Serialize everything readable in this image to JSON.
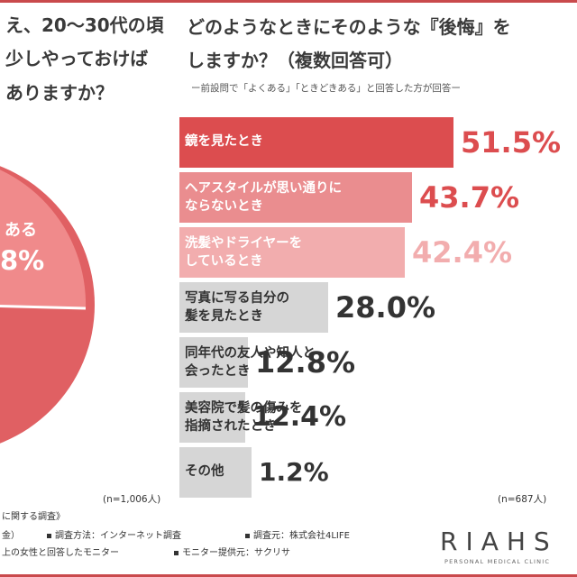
{
  "left_panel": {
    "question_lines": [
      "え、20〜30代の頃",
      "少しやっておけば",
      "ありますか？"
    ],
    "pie_label": "ある",
    "pie_value": "8%",
    "n_label": "(n=1,006人)"
  },
  "colors": {
    "accent": "#c94a4c",
    "bar_1": "#dc4d4f",
    "bar_2": "#ea8d8f",
    "bar_3": "#f2adae",
    "bar_rest": "#d6d6d6",
    "pie_main": "#e06063",
    "pie_secondary": "#f08a8b"
  },
  "chart_data": {
    "type": "bar",
    "orientation": "horizontal",
    "title_lines": [
      "どのようなときにそのような『後悔』を",
      "しますか？（複数回答可）"
    ],
    "subtitle": "ー前設問で「よくある」「ときどきある」と回答した方が回答ー",
    "categories": [
      [
        "鏡を見たとき"
      ],
      [
        "ヘアスタイルが思い通りに",
        "ならないとき"
      ],
      [
        "洗髪やドライヤーを",
        "しているとき"
      ],
      [
        "写真に写る自分の",
        "髪を見たとき"
      ],
      [
        "同年代の友人や知人と",
        "会ったとき"
      ],
      [
        "美容院で髪の傷みを",
        "指摘されたとき"
      ],
      [
        "その他"
      ]
    ],
    "values": [
      51.5,
      43.7,
      42.4,
      28.0,
      12.8,
      12.4,
      1.2
    ],
    "value_labels": [
      "51.5%",
      "43.7%",
      "42.4%",
      "28.0%",
      "12.8%",
      "12.4%",
      "1.2%"
    ],
    "unit": "%",
    "n_label": "(n=687人)"
  },
  "footer": {
    "line1_a": "に関する調査》",
    "line2_a": "金）",
    "line2_b": "調査方法：インターネット調査",
    "line2_c": "調査元：株式会社4LIFE",
    "line3_a": "上の女性と回答したモニター",
    "line3_b": "モニター提供元：サクリサ"
  },
  "brand": {
    "name": "RIAHS",
    "tagline": "PERSONAL MEDICAL CLINIC"
  }
}
